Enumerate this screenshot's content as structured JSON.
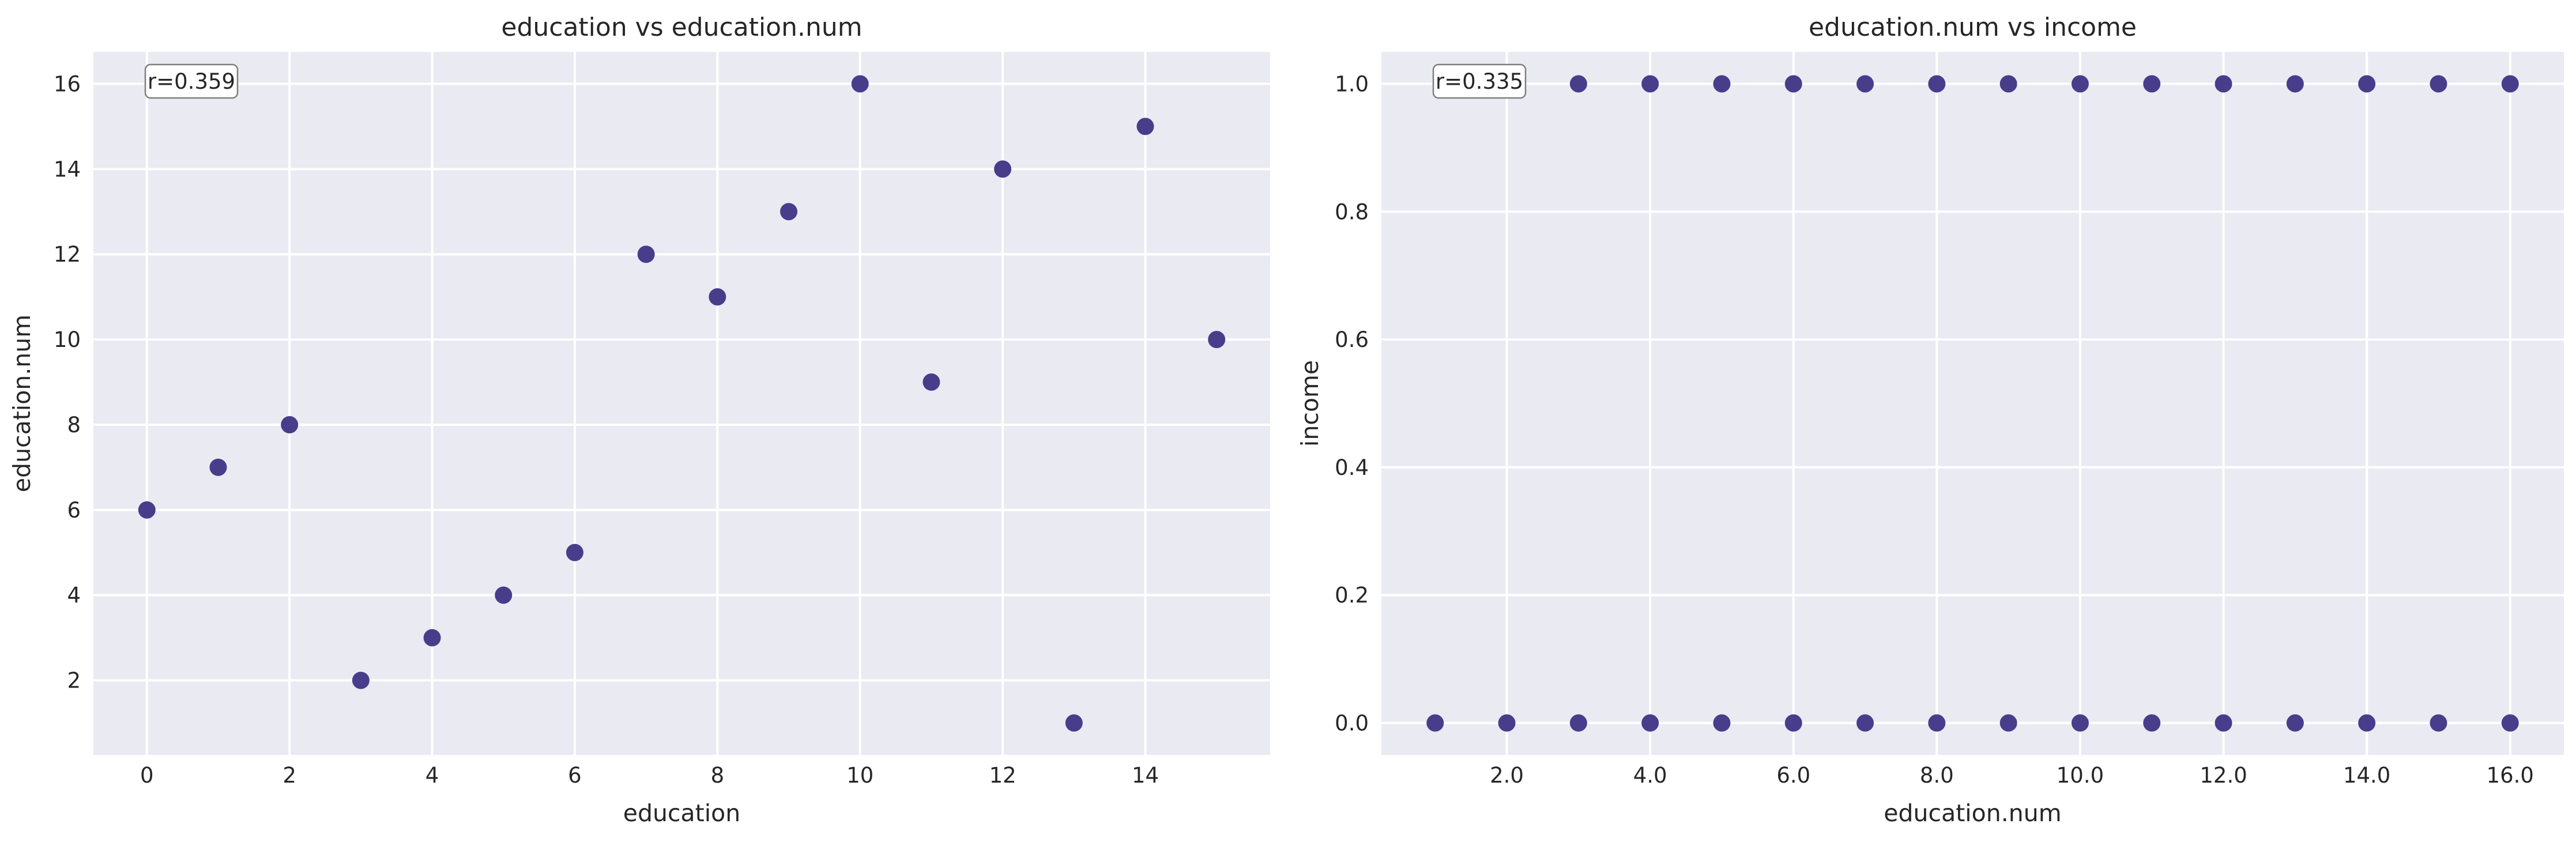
{
  "chart_data": [
    {
      "type": "scatter",
      "title": "education vs education.num",
      "xlabel": "education",
      "ylabel": "education.num",
      "xlim": [
        -0.75,
        15.75
      ],
      "ylim": [
        0.25,
        16.75
      ],
      "xticks": [
        0,
        2,
        4,
        6,
        8,
        10,
        12,
        14
      ],
      "yticks": [
        2,
        4,
        6,
        8,
        10,
        12,
        14,
        16
      ],
      "tick_decimals": 0,
      "grid": true,
      "annotation": "r=0.359",
      "color": "#483d8b",
      "x": [
        0,
        1,
        2,
        3,
        4,
        5,
        6,
        7,
        8,
        9,
        10,
        11,
        12,
        13,
        14,
        15
      ],
      "y": [
        6,
        7,
        8,
        2,
        3,
        4,
        5,
        12,
        11,
        13,
        16,
        9,
        14,
        1,
        15,
        10
      ]
    },
    {
      "type": "scatter",
      "title": "education.num vs income",
      "xlabel": "education.num",
      "ylabel": "income",
      "xlim": [
        0.25,
        16.75
      ],
      "ylim": [
        -0.05,
        1.05
      ],
      "xticks": [
        2,
        4,
        6,
        8,
        10,
        12,
        14,
        16
      ],
      "yticks": [
        0.0,
        0.2,
        0.4,
        0.6,
        0.8,
        1.0
      ],
      "tick_decimals": 1,
      "grid": true,
      "annotation": "r=0.335",
      "color": "#483d8b",
      "x": [
        1,
        2,
        3,
        4,
        5,
        6,
        7,
        8,
        9,
        10,
        11,
        12,
        13,
        14,
        15,
        16,
        3,
        4,
        5,
        6,
        7,
        8,
        9,
        10,
        11,
        12,
        13,
        14,
        15,
        16
      ],
      "y": [
        0,
        0,
        0,
        0,
        0,
        0,
        0,
        0,
        0,
        0,
        0,
        0,
        0,
        0,
        0,
        0,
        1,
        1,
        1,
        1,
        1,
        1,
        1,
        1,
        1,
        1,
        1,
        1,
        1,
        1
      ]
    }
  ]
}
